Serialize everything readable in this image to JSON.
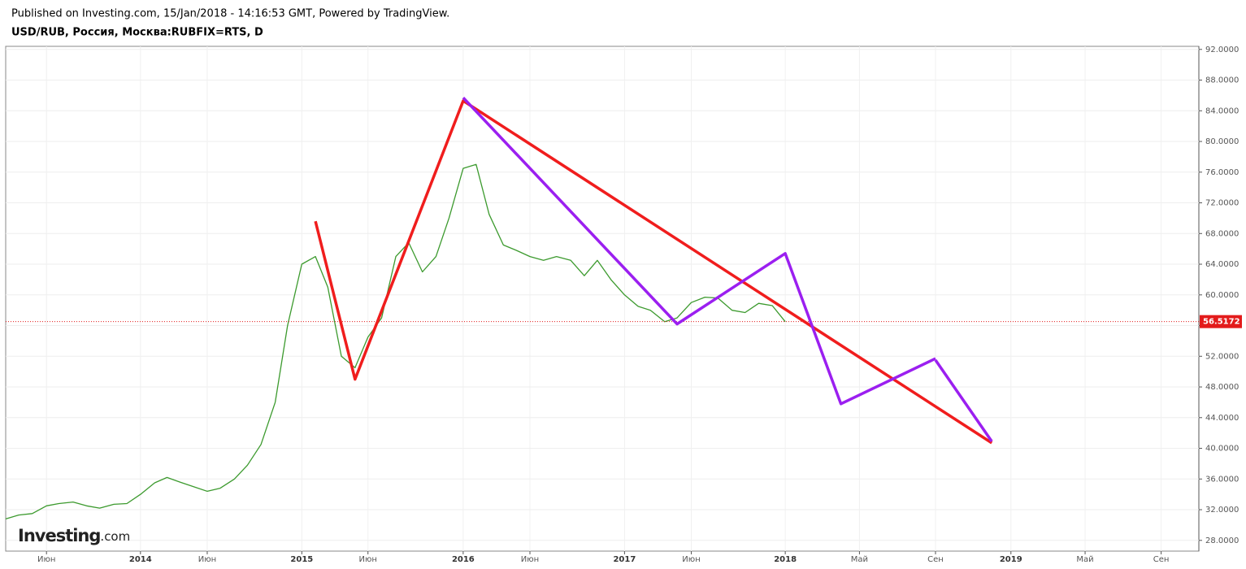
{
  "header": {
    "published": "Published on Investing.com, 15/Jan/2018 - 14:16:53 GMT, Powered by TradingView.",
    "symbol": "USD/RUB, Россия, Москва:RUBFIX=RTS, D"
  },
  "logo": {
    "name": "Investing",
    "suffix": ".com"
  },
  "chart_data": {
    "type": "line",
    "x": [
      "2013-03",
      "2013-04",
      "2013-05",
      "2013-06",
      "2013-07",
      "2013-08",
      "2013-09",
      "2013-10",
      "2013-11",
      "2013-12",
      "2014-01",
      "2014-02",
      "2014-03",
      "2014-04",
      "2014-05",
      "2014-06",
      "2014-07",
      "2014-08",
      "2014-09",
      "2014-10",
      "2014-11",
      "2014-12",
      "2015-01",
      "2015-02",
      "2015-03",
      "2015-04",
      "2015-05",
      "2015-06",
      "2015-07",
      "2015-08",
      "2015-09",
      "2015-10",
      "2015-11",
      "2015-12",
      "2016-01",
      "2016-02",
      "2016-03",
      "2016-04",
      "2016-05",
      "2016-06",
      "2016-07",
      "2016-08",
      "2016-09",
      "2016-10",
      "2016-11",
      "2016-12",
      "2017-01",
      "2017-02",
      "2017-03",
      "2017-04",
      "2017-05",
      "2017-06",
      "2017-07",
      "2017-08",
      "2017-09",
      "2017-10",
      "2017-11",
      "2017-12",
      "2018-01"
    ],
    "series": [
      {
        "name": "USD/RUB",
        "color": "#3c9a2e",
        "values": [
          30.8,
          31.3,
          31.5,
          32.5,
          32.8,
          33.0,
          32.5,
          32.2,
          32.7,
          32.8,
          34.0,
          35.5,
          36.2,
          35.6,
          35.0,
          34.4,
          34.8,
          36.0,
          37.8,
          40.5,
          46.0,
          56.0,
          64.0,
          65.0,
          61.0,
          52.0,
          50.5,
          54.5,
          57.0,
          65.0,
          66.8,
          63.0,
          65.0,
          70.0,
          76.5,
          77.0,
          70.5,
          66.5,
          65.8,
          65.0,
          64.5,
          65.0,
          64.5,
          62.5,
          64.5,
          62.0,
          60.0,
          58.5,
          58.0,
          56.5,
          57.0,
          59.0,
          59.7,
          59.6,
          58.0,
          57.7,
          58.9,
          58.6,
          56.5172
        ]
      }
    ],
    "current_price": 56.5172,
    "current_color": "#e31b1b",
    "drawings": [
      {
        "color": "#f01d1d",
        "x": [
          "2015-02",
          "2015-05",
          "2016-01",
          "2018-12"
        ],
        "y": [
          69.6,
          49.0,
          85.3,
          40.7
        ]
      },
      {
        "color": "#9b1ff0",
        "x": [
          "2016-01",
          "2017-05",
          "2018-01",
          "2018-04",
          "2018-09"
        ],
        "y": [
          85.7,
          56.2,
          65.4,
          45.8,
          51.7
        ]
      },
      {
        "color": "#9b1ff0",
        "x": [
          "2018-09",
          "2018-12"
        ],
        "y": [
          51.5,
          40.9
        ]
      }
    ],
    "xlim": [
      "2013-03",
      "2019-11"
    ],
    "ylim": [
      26.6,
      92.4
    ],
    "xticks": [
      {
        "value": "2013-06",
        "label": "Июн"
      },
      {
        "value": "2014-01",
        "label": "2014"
      },
      {
        "value": "2014-06",
        "label": "Июн"
      },
      {
        "value": "2015-01",
        "label": "2015"
      },
      {
        "value": "2015-06",
        "label": "Июн"
      },
      {
        "value": "2016-01",
        "label": "2016"
      },
      {
        "value": "2016-06",
        "label": "Июн"
      },
      {
        "value": "2017-01",
        "label": "2017"
      },
      {
        "value": "2017-06",
        "label": "Июн"
      },
      {
        "value": "2018-01",
        "label": "2018"
      },
      {
        "value": "2018-05",
        "label": "Май"
      },
      {
        "value": "2018-09",
        "label": "Сен"
      },
      {
        "value": "2019-01",
        "label": "2019"
      },
      {
        "value": "2019-05",
        "label": "Май"
      },
      {
        "value": "2019-09",
        "label": "Сен"
      }
    ],
    "yticks": [
      {
        "value": 28,
        "label": "28.0000"
      },
      {
        "value": 32,
        "label": "32.0000"
      },
      {
        "value": 36,
        "label": "36.0000"
      },
      {
        "value": 40,
        "label": "40.0000"
      },
      {
        "value": 44,
        "label": "44.0000"
      },
      {
        "value": 48,
        "label": "48.0000"
      },
      {
        "value": 52,
        "label": "52.0000"
      },
      {
        "value": 56,
        "label": "56.0000"
      },
      {
        "value": 60,
        "label": "60.0000"
      },
      {
        "value": 64,
        "label": "64.0000"
      },
      {
        "value": 68,
        "label": "68.0000"
      },
      {
        "value": 72,
        "label": "72.0000"
      },
      {
        "value": 76,
        "label": "76.0000"
      },
      {
        "value": 80,
        "label": "80.0000"
      },
      {
        "value": 84,
        "label": "84.0000"
      },
      {
        "value": 88,
        "label": "88.0000"
      },
      {
        "value": 92,
        "label": "92.0000"
      }
    ],
    "grid": true
  }
}
